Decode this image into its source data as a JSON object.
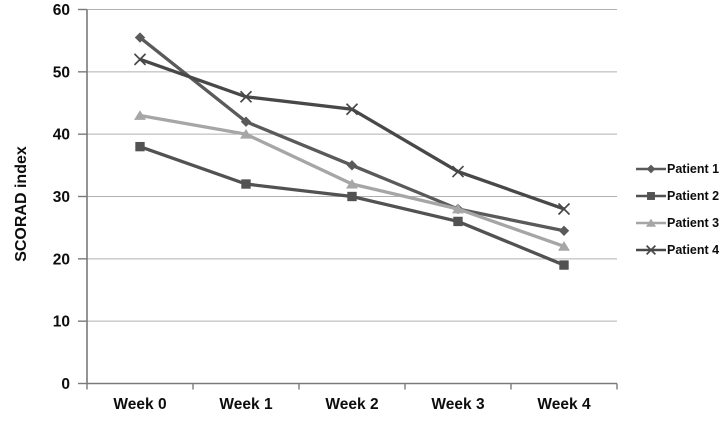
{
  "chart_data": {
    "type": "line",
    "title": "",
    "xlabel": "",
    "ylabel": "SCORAD index",
    "categories": [
      "Week 0",
      "Week 1",
      "Week 2",
      "Week 3",
      "Week 4"
    ],
    "series": [
      {
        "name": "Patient 1",
        "marker": "diamond",
        "color": "#5a5a5a",
        "values": [
          55.5,
          42,
          35,
          28,
          24.5
        ]
      },
      {
        "name": "Patient 2",
        "marker": "square",
        "color": "#525252",
        "values": [
          38,
          32,
          30,
          26,
          19
        ]
      },
      {
        "name": "Patient 3",
        "marker": "triangle",
        "color": "#a6a6a6",
        "values": [
          43,
          40,
          32,
          28,
          22
        ]
      },
      {
        "name": "Patient 4",
        "marker": "x",
        "color": "#484848",
        "values": [
          52,
          46,
          44,
          34,
          28
        ]
      }
    ],
    "ylim": [
      0,
      60
    ],
    "yticks": [
      0,
      10,
      20,
      30,
      40,
      50,
      60
    ],
    "grid": true,
    "legend_position": "right"
  },
  "colors": {
    "background": "#ffffff",
    "grid": "#b0b0b0",
    "axis": "#7a7a7a",
    "text": "#0d0d0d"
  }
}
